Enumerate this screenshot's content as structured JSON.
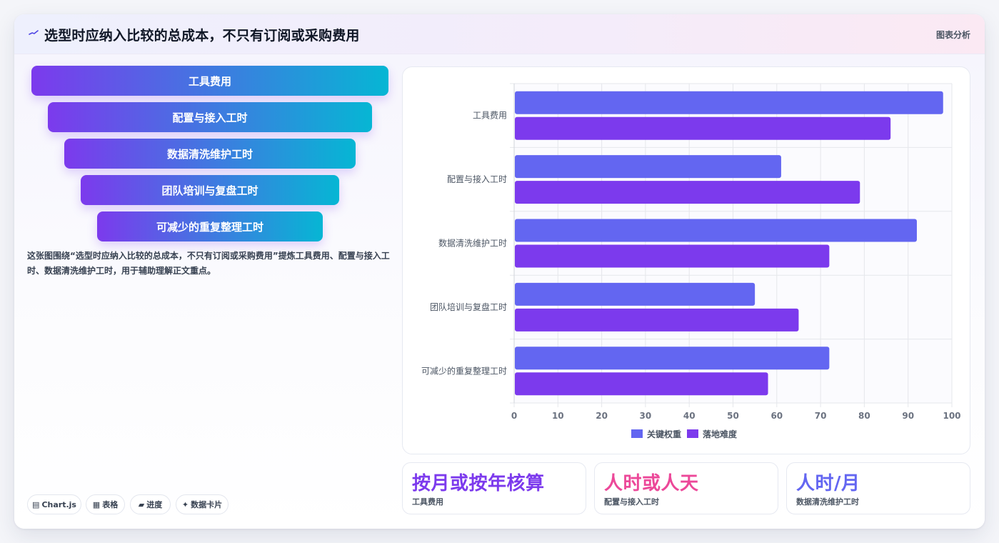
{
  "header": {
    "icon": "sparkle-line-icon",
    "title": "选型时应纳入比较的总成本，不只有订阅或采购费用",
    "tag": "图表分析"
  },
  "funnel": {
    "items": [
      {
        "label": "工具费用"
      },
      {
        "label": "配置与接入工时"
      },
      {
        "label": "数据清洗维护工时"
      },
      {
        "label": "团队培训与复盘工时"
      },
      {
        "label": "可减少的重复整理工时"
      }
    ]
  },
  "description": "这张图围绕“选型时应纳入比较的总成本，不只有订阅或采购费用”提炼工具费用、配置与接入工时、数据清洗维护工时，用于辅助理解正文重点。",
  "chips": [
    {
      "icon": "chart-icon",
      "glyph": "▤",
      "label": "Chart.js"
    },
    {
      "icon": "table-icon",
      "glyph": "▦",
      "label": "表格"
    },
    {
      "icon": "progress-icon",
      "glyph": "▰",
      "label": "进度"
    },
    {
      "icon": "data-card-icon",
      "glyph": "✦",
      "label": "数据卡片"
    }
  ],
  "stats": [
    {
      "value": "按月或按年核算",
      "label": "工具费用",
      "color": "#7c3aed"
    },
    {
      "value": "人时或人天",
      "label": "配置与接入工时",
      "color": "#ec4899"
    },
    {
      "value": "人时/月",
      "label": "数据清洗维护工时",
      "color": "#6366f1"
    }
  ],
  "chart_data": {
    "type": "bar",
    "orientation": "horizontal",
    "categories": [
      "工具费用",
      "配置与接入工时",
      "数据清洗维护工时",
      "团队培训与复盘工时",
      "可减少的重复整理工时"
    ],
    "series": [
      {
        "name": "关键权重",
        "color": "#6366f1",
        "values": [
          98,
          61,
          92,
          55,
          72
        ]
      },
      {
        "name": "落地难度",
        "color": "#7c3aed",
        "values": [
          86,
          79,
          72,
          65,
          58
        ]
      }
    ],
    "xlim": [
      0,
      100
    ],
    "x_ticks": [
      0,
      10,
      20,
      30,
      40,
      50,
      60,
      70,
      80,
      90,
      100
    ],
    "grid": true,
    "legend": "bottom"
  }
}
